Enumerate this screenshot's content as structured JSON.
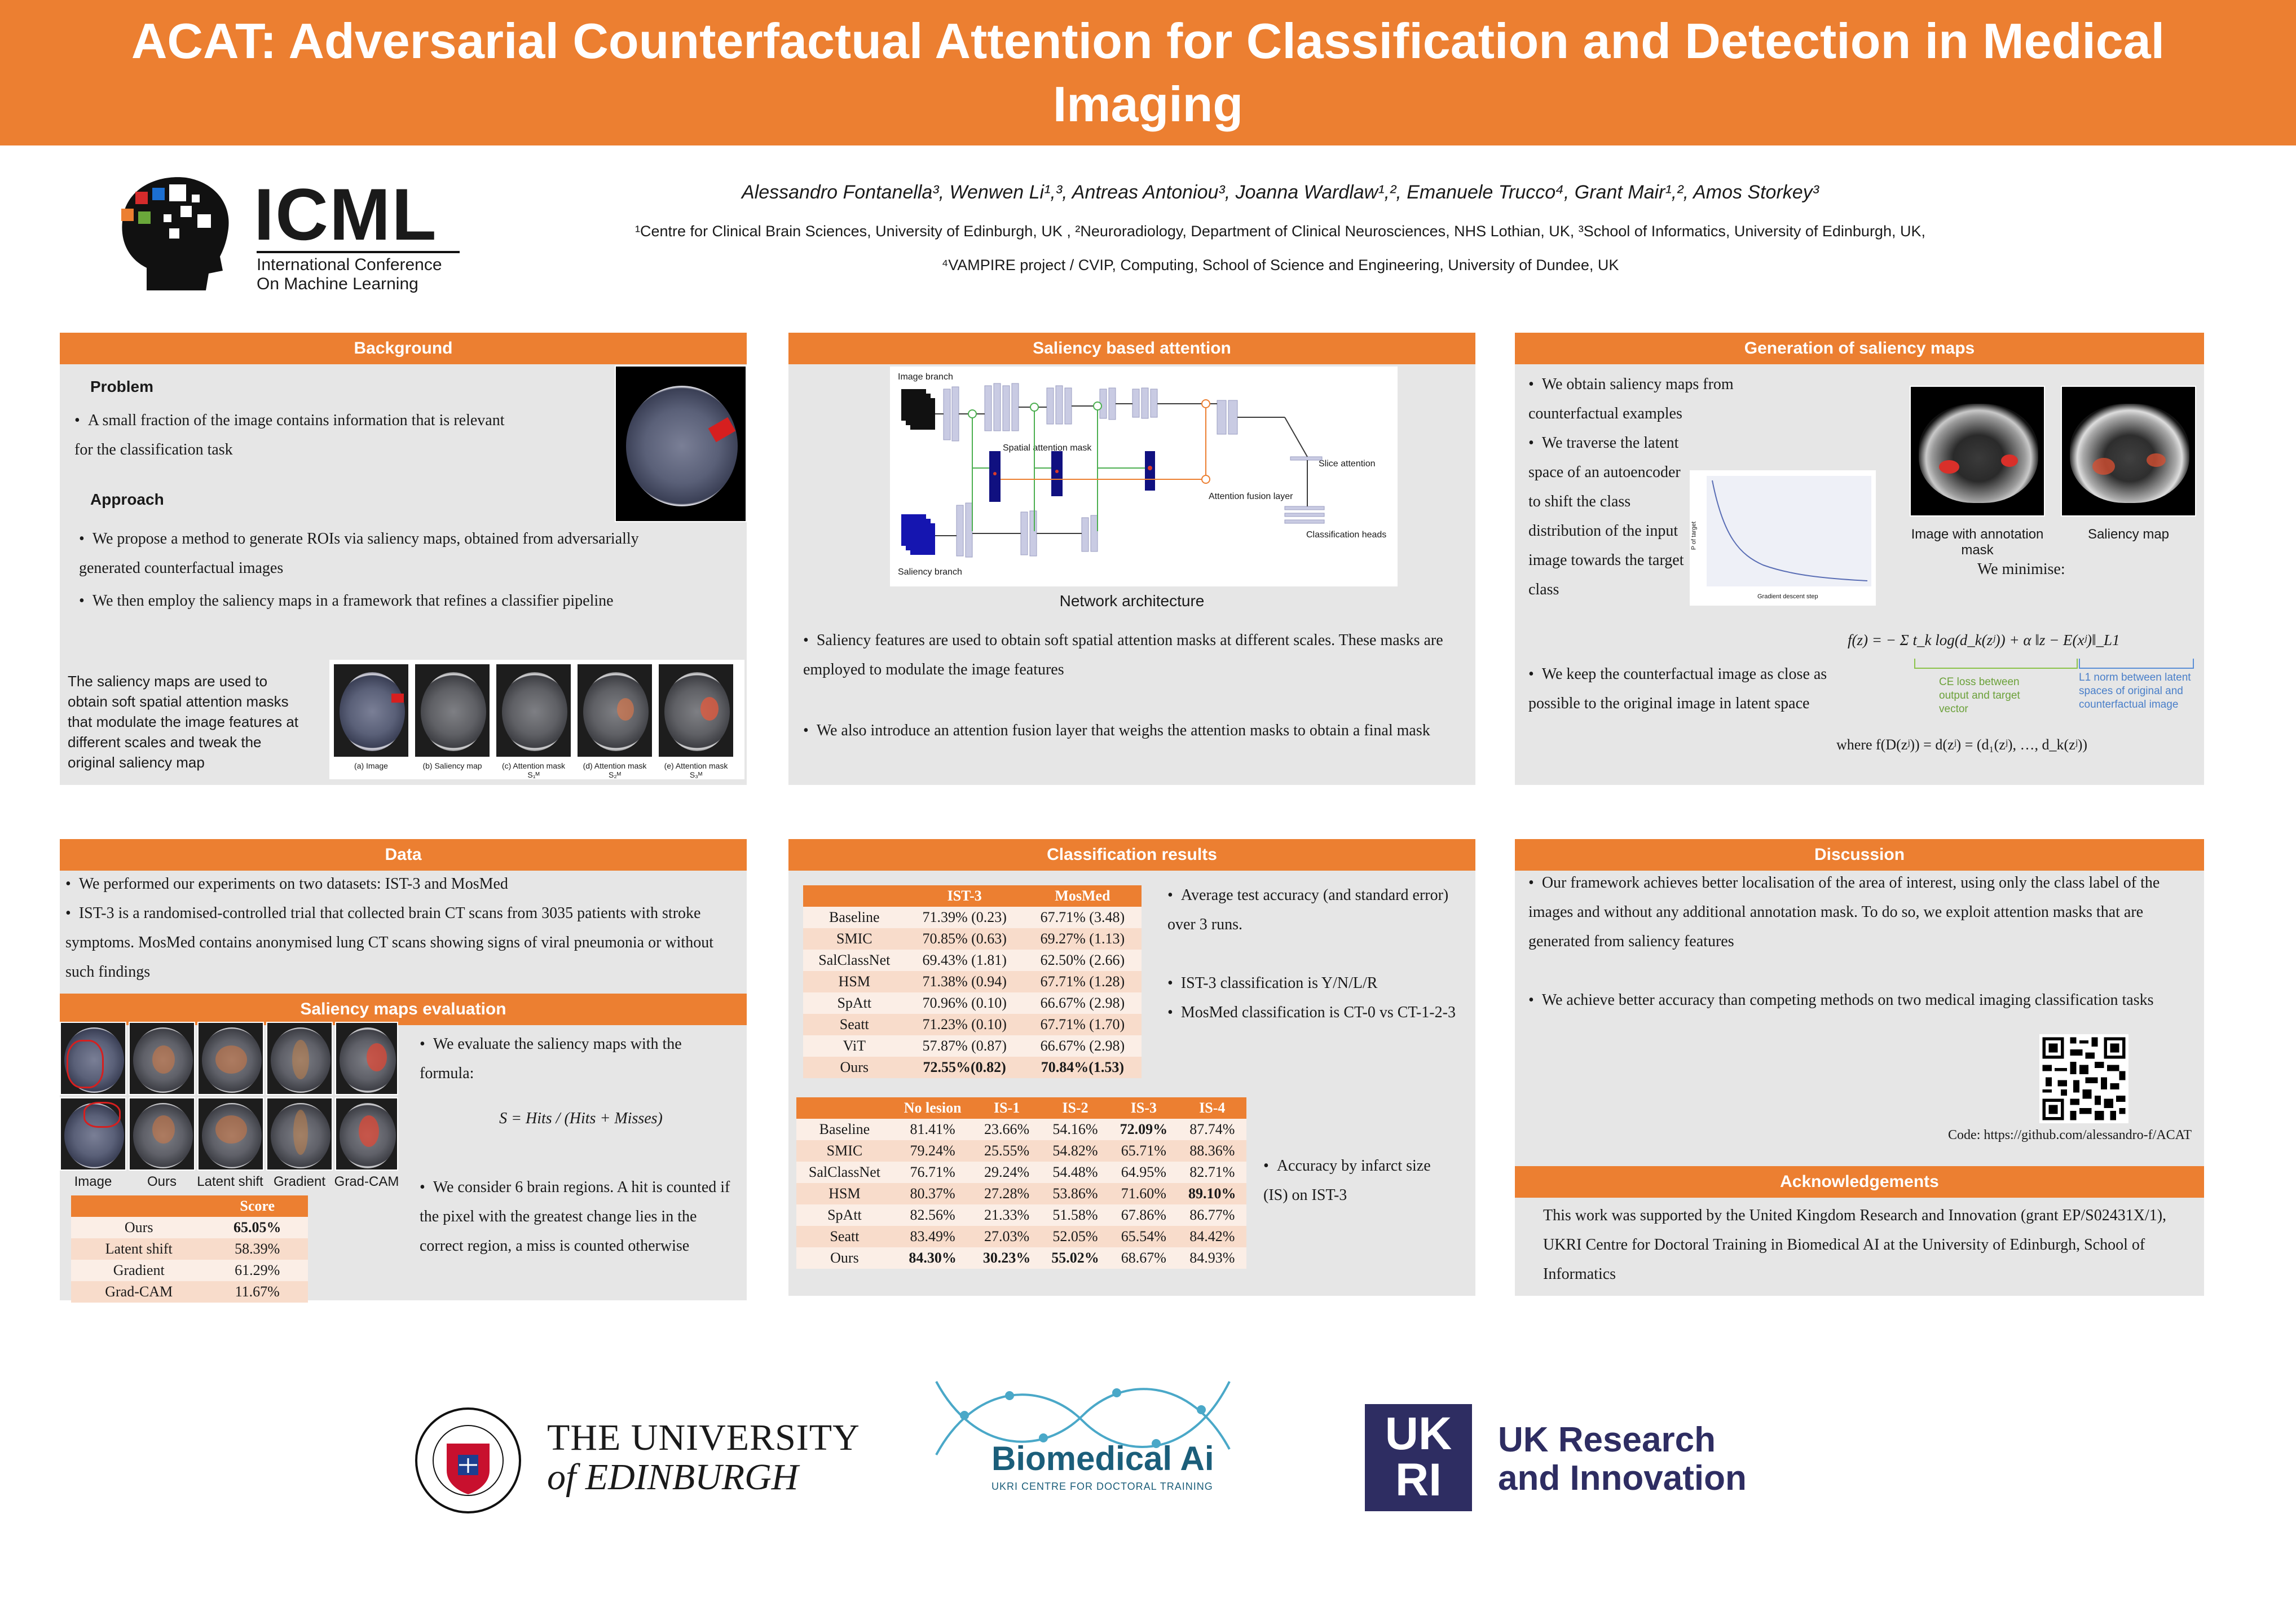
{
  "title": "ACAT: Adversarial Counterfactual Attention for Classification and Detection in Medical Imaging",
  "authors": "Alessandro Fontanella³, Wenwen Li¹,³, Antreas Antoniou³, Joanna Wardlaw¹,², Emanuele Trucco⁴, Grant Mair¹,², Amos Storkey³",
  "affiliations_line1": "¹Centre for Clinical Brain Sciences, University of Edinburgh, UK , ²Neuroradiology, Department of Clinical Neurosciences, NHS Lothian, UK, ³School of Informatics, University of Edinburgh, UK,",
  "affiliations_line2": "⁴VAMPIRE project / CVIP, Computing, School of Science and Engineering, University of Dundee, UK",
  "icml": {
    "name": "ICML",
    "sub1": "International Conference",
    "sub2": "On Machine Learning"
  },
  "background": {
    "header": "Background",
    "problem_title": "Problem",
    "problem_text": "A small fraction of the image contains information that is relevant for the classification task",
    "approach_title": "Approach",
    "approach_1": "We propose a method to generate ROIs via saliency maps, obtained from adversarially generated counterfactual images",
    "approach_2": "We then employ the saliency maps in a framework that refines a classifier pipeline",
    "side_text": "The saliency maps are used to obtain soft spatial attention masks that modulate the image features at different scales and tweak the original saliency map",
    "captions": [
      "(a) Image",
      "(b) Saliency map",
      "(c) Attention mask S₁ᴹ",
      "(d) Attention mask S₂ᴹ",
      "(e) Attention mask S₃ᴹ"
    ]
  },
  "saliency_attention": {
    "header": "Saliency based attention",
    "labels": {
      "image_branch": "Image branch",
      "saliency_branch": "Saliency branch",
      "spatial_mask": "Spatial attention mask",
      "fusion": "Attention fusion layer",
      "slice": "Slice attention",
      "heads": "Classification heads"
    },
    "caption": "Network architecture",
    "bullet_1": "Saliency features are used to obtain soft spatial attention masks at different scales. These masks are employed to modulate the image features",
    "bullet_2": "We also introduce an attention fusion layer that weighs the attention masks to obtain a final mask"
  },
  "generation": {
    "header": "Generation of saliency maps",
    "bullet_1": "We obtain saliency maps from counterfactual examples",
    "bullet_2": "We traverse the latent space of an autoencoder to shift the class distribution of the input image towards the target class",
    "bullet_3": "We keep the counterfactual image as close as possible to the original image in latent space",
    "img_caption_1": "Image with annotation mask",
    "img_caption_2": "Saliency map",
    "minimise": "We minimise:",
    "formula": "f(z) = − Σ t_k log(d_k(zʲ)) + α ‖z − E(xʲ)‖_L1",
    "note_ce": "CE loss between output and target vector",
    "note_l1": "L1 norm between latent spaces of original and counterfactual image",
    "where": "where f(D(zʲ)) = d(zʲ) = (d₁(zʲ), …, d_k(zʲ))",
    "plot_xlabel": "Gradient descent step",
    "plot_ylabel": "P of target"
  },
  "data_section": {
    "header": "Data",
    "bullet_1": "We performed our experiments on two datasets: IST-3 and MosMed",
    "bullet_2": "IST-3 is a randomised-controlled trial that collected brain CT scans from 3035 patients with stroke symptoms. MosMed contains anonymised lung CT scans showing signs of viral pneumonia or without such findings"
  },
  "saliency_eval": {
    "header": "Saliency maps evaluation",
    "col_labels": [
      "Image",
      "Ours",
      "Latent shift",
      "Gradient",
      "Grad-CAM"
    ],
    "table_header": "Score",
    "rows": [
      [
        "Ours",
        "65.05%"
      ],
      [
        "Latent shift",
        "58.39%"
      ],
      [
        "Gradient",
        "61.29%"
      ],
      [
        "Grad-CAM",
        "11.67%"
      ]
    ],
    "bullet_1": "We evaluate the saliency maps with the formula:",
    "formula": "S = Hits / (Hits + Misses)",
    "bullet_2": "We consider 6 brain regions. A hit is counted if the pixel with the greatest change lies in the correct region, a miss is counted otherwise"
  },
  "classification": {
    "header": "Classification results",
    "table1_headers": [
      "",
      "IST-3",
      "MosMed"
    ],
    "table1_rows": [
      [
        "Baseline",
        "71.39% (0.23)",
        "67.71% (3.48)"
      ],
      [
        "SMIC",
        "70.85% (0.63)",
        "69.27% (1.13)"
      ],
      [
        "SalClassNet",
        "69.43% (1.81)",
        "62.50% (2.66)"
      ],
      [
        "HSM",
        "71.38% (0.94)",
        "67.71% (1.28)"
      ],
      [
        "SpAtt",
        "70.96% (0.10)",
        "66.67% (2.98)"
      ],
      [
        "Seatt",
        "71.23% (0.10)",
        "67.71% (1.70)"
      ],
      [
        "ViT",
        "57.87% (0.87)",
        "66.67% (2.98)"
      ],
      [
        "Ours",
        "72.55%(0.82)",
        "70.84%(1.53)"
      ]
    ],
    "bullet_1": "Average test accuracy (and standard error) over 3 runs.",
    "bullet_2": "IST-3 classification is Y/N/L/R",
    "bullet_3": "MosMed classification is CT-0 vs CT-1-2-3",
    "table2_headers": [
      "",
      "No lesion",
      "IS-1",
      "IS-2",
      "IS-3",
      "IS-4"
    ],
    "table2_rows": [
      [
        "Baseline",
        "81.41%",
        "23.66%",
        "54.16%",
        "72.09%",
        "87.74%"
      ],
      [
        "SMIC",
        "79.24%",
        "25.55%",
        "54.82%",
        "65.71%",
        "88.36%"
      ],
      [
        "SalClassNet",
        "76.71%",
        "29.24%",
        "54.48%",
        "64.95%",
        "82.71%"
      ],
      [
        "HSM",
        "80.37%",
        "27.28%",
        "53.86%",
        "71.60%",
        "89.10%"
      ],
      [
        "SpAtt",
        "82.56%",
        "21.33%",
        "51.58%",
        "67.86%",
        "86.77%"
      ],
      [
        "Seatt",
        "83.49%",
        "27.03%",
        "52.05%",
        "65.54%",
        "84.42%"
      ],
      [
        "Ours",
        "84.30%",
        "30.23%",
        "55.02%",
        "68.67%",
        "84.93%"
      ]
    ],
    "bullet_4": "Accuracy by infarct size (IS) on IST-3"
  },
  "discussion": {
    "header": "Discussion",
    "bullet_1": "Our framework achieves better localisation of the area of interest, using only the class label of the images and without any additional annotation mask. To do so, we exploit attention masks that are generated from saliency features",
    "bullet_2": "We achieve better accuracy than competing methods on two medical imaging classification tasks",
    "code": "Code: https://github.com/alessandro-f/ACAT"
  },
  "acknowledgements": {
    "header": "Acknowledgements",
    "text": "This work was supported by the United Kingdom Research and Innovation (grant EP/S02431X/1), UKRI Centre for Doctoral Training in Biomedical AI at the University of Edinburgh, School of Informatics"
  },
  "logos": {
    "edinburgh_1": "THE UNIVERSITY",
    "edinburgh_2": "of EDINBURGH",
    "biomed": "Biomedical Ai",
    "biomed_sub": "UKRI CENTRE FOR DOCTORAL TRAINING",
    "ukri_1": "UK Research",
    "ukri_2": "and Innovation",
    "ukri_mark": "UKRI"
  },
  "colors": {
    "accent": "#ec7f31",
    "panel": "#e6e6e6"
  }
}
